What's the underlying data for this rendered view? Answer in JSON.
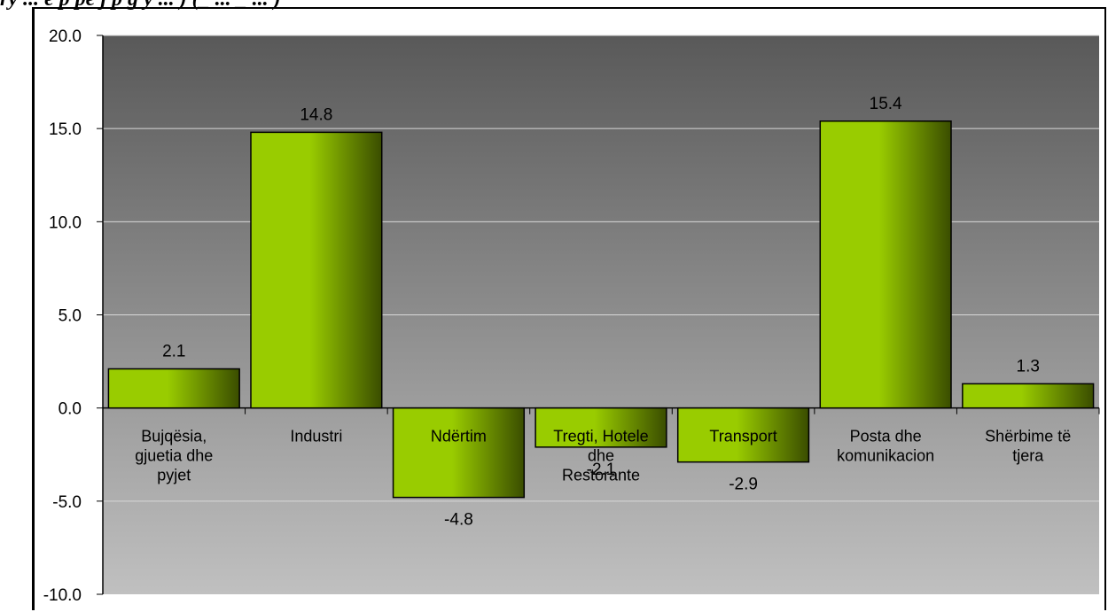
{
  "caption": "ry ... e p pe j p g y ... ) (_ ... _ ... )",
  "chart_data": {
    "type": "bar",
    "title": "",
    "xlabel": "",
    "ylabel": "",
    "ylim": [
      -10,
      20
    ],
    "yticks": [
      "20.0",
      "15.0",
      "10.0",
      "5.0",
      "0.0",
      "-5.0",
      "-10.0"
    ],
    "categories": [
      "Bujqësia, gjuetia dhe pyjet",
      "Industri",
      "Ndërtim",
      "Tregti, Hotele dhe Restorante",
      "Transport",
      "Posta dhe komunikacion",
      "Shërbime të tjera"
    ],
    "category_lines": [
      [
        "Bujqësia,",
        "gjuetia dhe",
        "pyjet"
      ],
      [
        "Industri"
      ],
      [
        "Ndërtim"
      ],
      [
        "Tregti, Hotele",
        "dhe",
        "Restorante"
      ],
      [
        "Transport"
      ],
      [
        "Posta dhe",
        "komunikacion"
      ],
      [
        "Shërbime të",
        "tjera"
      ]
    ],
    "values": [
      2.1,
      14.8,
      -4.8,
      -2.1,
      -2.9,
      15.4,
      1.3
    ],
    "data_labels": [
      "2.1",
      "14.8",
      "-4.8",
      "-2.1",
      "-2.9",
      "15.4",
      "1.3"
    ],
    "grid": true,
    "legend": "none",
    "colors": {
      "plot_top": "#595959",
      "plot_bottom": "#c0c0c0",
      "bar_light": "#99cc00",
      "bar_dark": "#3a4d00",
      "gridline": "#d9d9d9"
    }
  }
}
